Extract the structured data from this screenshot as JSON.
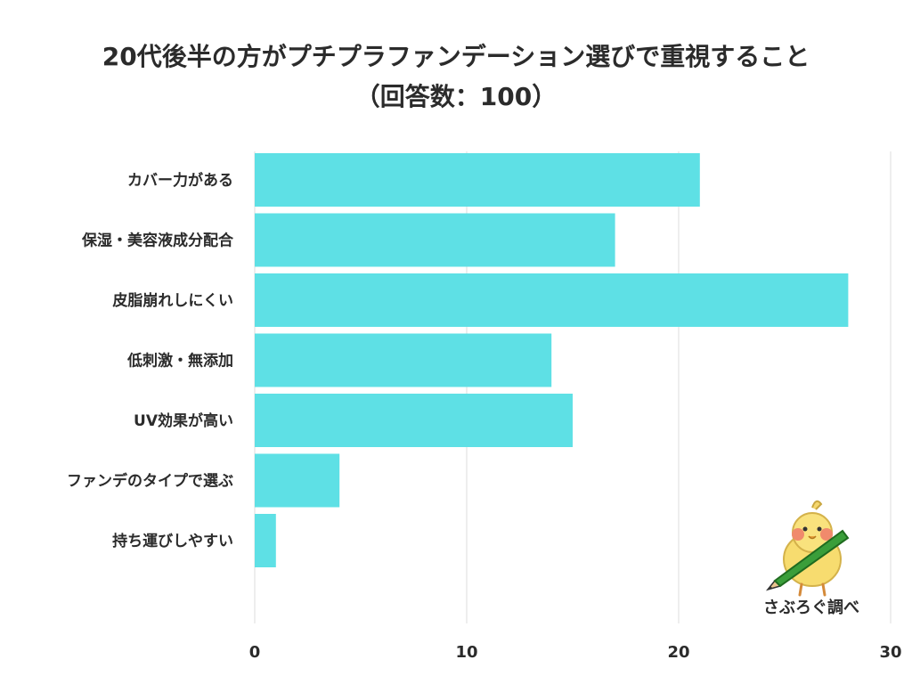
{
  "chart_data": {
    "type": "bar",
    "orientation": "horizontal",
    "title": "20代後半の方がプチプラファンデーション選びで重視すること",
    "subtitle": "（回答数：100）",
    "categories": [
      "カバー力がある",
      "保湿・美容液成分配合",
      "皮脂崩れしにくい",
      "低刺激・無添加",
      "UV効果が高い",
      "ファンデのタイプで選ぶ",
      "持ち運びしやすい"
    ],
    "values": [
      21,
      17,
      28,
      14,
      15,
      4,
      1
    ],
    "xlim": [
      0,
      30
    ],
    "xticks": [
      0,
      10,
      20,
      30
    ],
    "grid": true,
    "bar_color": "#5ee0e5"
  },
  "credit": "さぶろぐ調べ"
}
